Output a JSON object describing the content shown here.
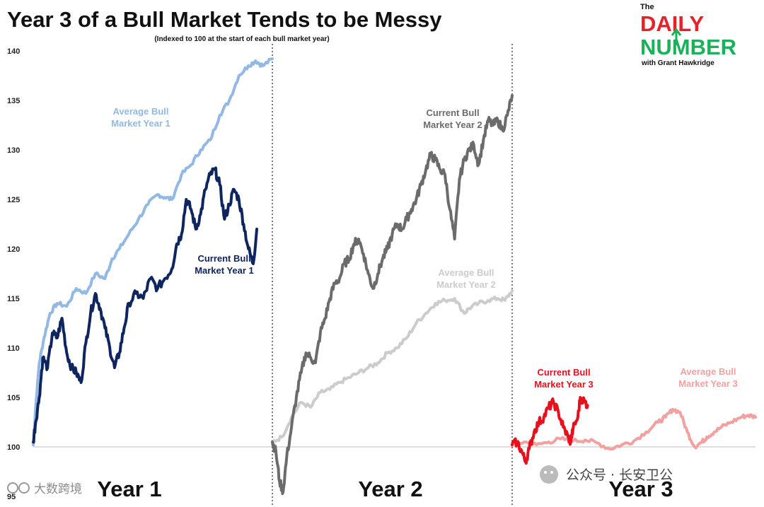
{
  "brand": {
    "the": "The",
    "daily": "DAILY",
    "number": "NUMBER",
    "with": "with Grant Hawkridge",
    "color_daily": "#e8202a",
    "color_number": "#1bb05a"
  },
  "watermarks": {
    "left": "大数跨境",
    "right": "公众号 · 长安卫公"
  },
  "chart_data": {
    "type": "line",
    "title": "Year 3 of a Bull Market Tends to be Messy",
    "subtitle": "(Indexed to 100 at the start of each bull market year)",
    "ylim": [
      95,
      140
    ],
    "yticks": [
      95,
      100,
      105,
      110,
      115,
      120,
      125,
      130,
      135,
      140
    ],
    "reference_line": 100,
    "panels": [
      {
        "label": "Year 1",
        "series": [
          {
            "name": "Average Bull Market Year 1",
            "color": "#92b9e3",
            "x_end": 1.0,
            "points": [
              [
                0,
                100.2
              ],
              [
                0.01,
                104
              ],
              [
                0.025,
                108.5
              ],
              [
                0.045,
                111
              ],
              [
                0.07,
                113.5
              ],
              [
                0.1,
                114.5
              ],
              [
                0.14,
                114.2
              ],
              [
                0.18,
                116
              ],
              [
                0.22,
                115.5
              ],
              [
                0.26,
                117.5
              ],
              [
                0.3,
                117
              ],
              [
                0.33,
                119
              ],
              [
                0.36,
                120
              ],
              [
                0.4,
                121.5
              ],
              [
                0.44,
                123
              ],
              [
                0.48,
                124.5
              ],
              [
                0.52,
                125.5
              ],
              [
                0.55,
                125.2
              ],
              [
                0.58,
                125
              ],
              [
                0.62,
                127.5
              ],
              [
                0.66,
                128.5
              ],
              [
                0.7,
                130
              ],
              [
                0.74,
                131
              ],
              [
                0.78,
                133.5
              ],
              [
                0.82,
                135
              ],
              [
                0.86,
                137.5
              ],
              [
                0.9,
                138.5
              ],
              [
                0.93,
                139
              ],
              [
                0.96,
                138.5
              ],
              [
                1.0,
                139.2
              ]
            ]
          },
          {
            "name": "Current Bull Market Year 1",
            "color": "#0f2560",
            "x_end": 0.935,
            "points": [
              [
                0,
                100.5
              ],
              [
                0.01,
                102.5
              ],
              [
                0.025,
                105
              ],
              [
                0.04,
                109
              ],
              [
                0.06,
                108
              ],
              [
                0.08,
                111.5
              ],
              [
                0.1,
                111
              ],
              [
                0.12,
                113
              ],
              [
                0.14,
                109.5
              ],
              [
                0.16,
                108
              ],
              [
                0.18,
                107.5
              ],
              [
                0.2,
                106.5
              ],
              [
                0.22,
                110.5
              ],
              [
                0.24,
                113.5
              ],
              [
                0.26,
                115.5
              ],
              [
                0.28,
                114
              ],
              [
                0.3,
                112
              ],
              [
                0.32,
                110
              ],
              [
                0.34,
                108
              ],
              [
                0.36,
                109.5
              ],
              [
                0.38,
                112
              ],
              [
                0.4,
                114.5
              ],
              [
                0.43,
                115.5
              ],
              [
                0.46,
                115
              ],
              [
                0.49,
                117
              ],
              [
                0.52,
                116
              ],
              [
                0.55,
                117
              ],
              [
                0.58,
                118
              ],
              [
                0.6,
                120.5
              ],
              [
                0.62,
                121.5
              ],
              [
                0.64,
                125
              ],
              [
                0.66,
                124
              ],
              [
                0.68,
                122
              ],
              [
                0.7,
                123.5
              ],
              [
                0.72,
                126
              ],
              [
                0.74,
                127.5
              ],
              [
                0.76,
                128
              ],
              [
                0.78,
                126.5
              ],
              [
                0.8,
                123
              ],
              [
                0.82,
                124.5
              ],
              [
                0.84,
                126
              ],
              [
                0.86,
                125
              ],
              [
                0.88,
                122.5
              ],
              [
                0.9,
                120
              ],
              [
                0.92,
                118.5
              ],
              [
                0.935,
                122
              ]
            ]
          }
        ]
      },
      {
        "label": "Year 2",
        "series": [
          {
            "name": "Current Bull Market Year 2",
            "color": "#6b6b6b",
            "x_end": 1.0,
            "points": [
              [
                0,
                100.5
              ],
              [
                0.015,
                99.5
              ],
              [
                0.03,
                96.5
              ],
              [
                0.045,
                95.5
              ],
              [
                0.06,
                99
              ],
              [
                0.08,
                102
              ],
              [
                0.1,
                105
              ],
              [
                0.12,
                107.5
              ],
              [
                0.14,
                109.5
              ],
              [
                0.16,
                109
              ],
              [
                0.18,
                108.5
              ],
              [
                0.2,
                111.5
              ],
              [
                0.22,
                113
              ],
              [
                0.24,
                115
              ],
              [
                0.26,
                116.5
              ],
              [
                0.28,
                117
              ],
              [
                0.3,
                118.5
              ],
              [
                0.32,
                119
              ],
              [
                0.34,
                120.5
              ],
              [
                0.36,
                121
              ],
              [
                0.38,
                119.5
              ],
              [
                0.4,
                117.5
              ],
              [
                0.42,
                116
              ],
              [
                0.44,
                117.5
              ],
              [
                0.46,
                119
              ],
              [
                0.48,
                120
              ],
              [
                0.5,
                121.5
              ],
              [
                0.52,
                122.5
              ],
              [
                0.54,
                122
              ],
              [
                0.56,
                123
              ],
              [
                0.58,
                124
              ],
              [
                0.6,
                125
              ],
              [
                0.62,
                126.5
              ],
              [
                0.64,
                128
              ],
              [
                0.66,
                129.5
              ],
              [
                0.68,
                129
              ],
              [
                0.7,
                128
              ],
              [
                0.72,
                127.5
              ],
              [
                0.74,
                124
              ],
              [
                0.76,
                121
              ],
              [
                0.78,
                127
              ],
              [
                0.8,
                129
              ],
              [
                0.82,
                130
              ],
              [
                0.84,
                130.5
              ],
              [
                0.86,
                128.5
              ],
              [
                0.88,
                131
              ],
              [
                0.9,
                133
              ],
              [
                0.92,
                132.5
              ],
              [
                0.94,
                133
              ],
              [
                0.96,
                132
              ],
              [
                0.98,
                133.5
              ],
              [
                1.0,
                135.5
              ]
            ]
          },
          {
            "name": "Average Bull Market Year 2",
            "color": "#cccccc",
            "x_end": 1.0,
            "points": [
              [
                0,
                100.5
              ],
              [
                0.04,
                101
              ],
              [
                0.08,
                103
              ],
              [
                0.12,
                104.5
              ],
              [
                0.16,
                104
              ],
              [
                0.2,
                105.5
              ],
              [
                0.24,
                105.8
              ],
              [
                0.28,
                106.5
              ],
              [
                0.32,
                107
              ],
              [
                0.36,
                107.5
              ],
              [
                0.4,
                108
              ],
              [
                0.44,
                108.5
              ],
              [
                0.48,
                109.5
              ],
              [
                0.52,
                110
              ],
              [
                0.56,
                111
              ],
              [
                0.6,
                112.5
              ],
              [
                0.64,
                113.5
              ],
              [
                0.68,
                114.5
              ],
              [
                0.72,
                114.8
              ],
              [
                0.76,
                115
              ],
              [
                0.8,
                113.5
              ],
              [
                0.82,
                114
              ],
              [
                0.86,
                114.5
              ],
              [
                0.9,
                114.8
              ],
              [
                0.94,
                115
              ],
              [
                0.97,
                114.8
              ],
              [
                1.0,
                115.8
              ]
            ]
          }
        ]
      },
      {
        "label": "Year 3",
        "series": [
          {
            "name": "Current Bull Market Year 3",
            "color": "#e8101c",
            "x_end": 0.31,
            "points": [
              [
                0,
                100.2
              ],
              [
                0.02,
                100.5
              ],
              [
                0.04,
                99.5
              ],
              [
                0.055,
                98.5
              ],
              [
                0.07,
                99.8
              ],
              [
                0.09,
                101.5
              ],
              [
                0.11,
                102.5
              ],
              [
                0.13,
                103
              ],
              [
                0.15,
                104
              ],
              [
                0.17,
                104.5
              ],
              [
                0.19,
                103.5
              ],
              [
                0.21,
                102
              ],
              [
                0.23,
                101
              ],
              [
                0.24,
                100.5
              ],
              [
                0.25,
                101.8
              ],
              [
                0.27,
                103
              ],
              [
                0.28,
                105
              ],
              [
                0.3,
                104.5
              ],
              [
                0.31,
                104.2
              ]
            ]
          },
          {
            "name": "Average Bull Market Year 3",
            "color": "#f2a0a0",
            "x_end": 1.0,
            "points": [
              [
                0,
                100.2
              ],
              [
                0.05,
                100.5
              ],
              [
                0.1,
                100.2
              ],
              [
                0.15,
                100.5
              ],
              [
                0.2,
                100.8
              ],
              [
                0.25,
                100.6
              ],
              [
                0.3,
                100.7
              ],
              [
                0.35,
                100.4
              ],
              [
                0.4,
                99.8
              ],
              [
                0.45,
                100.2
              ],
              [
                0.5,
                100.6
              ],
              [
                0.55,
                101.5
              ],
              [
                0.6,
                102.5
              ],
              [
                0.63,
                103
              ],
              [
                0.66,
                103.8
              ],
              [
                0.69,
                103.5
              ],
              [
                0.72,
                101.5
              ],
              [
                0.75,
                100
              ],
              [
                0.78,
                100.5
              ],
              [
                0.8,
                101
              ],
              [
                0.83,
                101.5
              ],
              [
                0.86,
                102
              ],
              [
                0.9,
                102.5
              ],
              [
                0.94,
                103
              ],
              [
                0.97,
                103.2
              ],
              [
                1.0,
                103
              ]
            ]
          }
        ]
      }
    ]
  }
}
